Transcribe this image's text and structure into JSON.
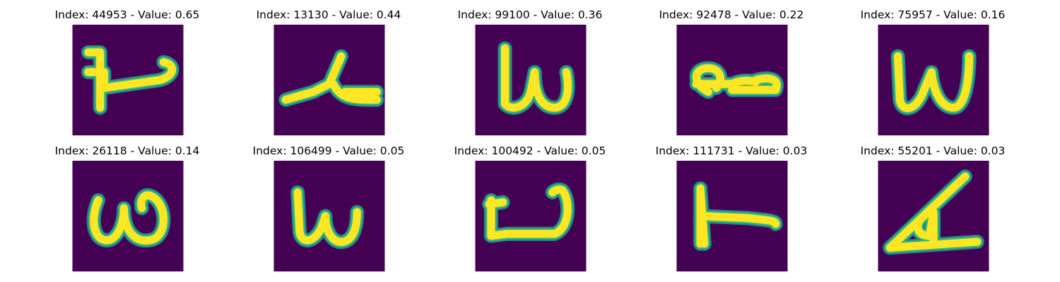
{
  "figure": {
    "panels": [
      {
        "index": "44953",
        "value": "0.65",
        "label": "Index: 44953 - Value: 0.65",
        "glyph": "glyph-44953"
      },
      {
        "index": "13130",
        "value": "0.44",
        "label": "Index: 13130 - Value: 0.44",
        "glyph": "glyph-13130"
      },
      {
        "index": "99100",
        "value": "0.36",
        "label": "Index: 99100 - Value: 0.36",
        "glyph": "glyph-99100"
      },
      {
        "index": "92478",
        "value": "0.22",
        "label": "Index: 92478 - Value: 0.22",
        "glyph": "glyph-92478"
      },
      {
        "index": "75957",
        "value": "0.16",
        "label": "Index: 75957 - Value: 0.16",
        "glyph": "glyph-75957"
      },
      {
        "index": "26118",
        "value": "0.14",
        "label": "Index: 26118 - Value: 0.14",
        "glyph": "glyph-26118"
      },
      {
        "index": "106499",
        "value": "0.05",
        "label": "Index: 106499 - Value: 0.05",
        "glyph": "glyph-106499"
      },
      {
        "index": "100492",
        "value": "0.05",
        "label": "Index: 100492 - Value: 0.05",
        "glyph": "glyph-100492"
      },
      {
        "index": "111731",
        "value": "0.03",
        "label": "Index: 111731 - Value: 0.03",
        "glyph": "glyph-111731"
      },
      {
        "index": "55201",
        "value": "0.03",
        "label": "Index: 55201 - Value: 0.03",
        "glyph": "glyph-55201"
      }
    ]
  },
  "colors": {
    "background_tile": "#440154",
    "stroke_core": "#fde725",
    "stroke_edge": "#35b779",
    "stroke_halo": "#26828e"
  }
}
